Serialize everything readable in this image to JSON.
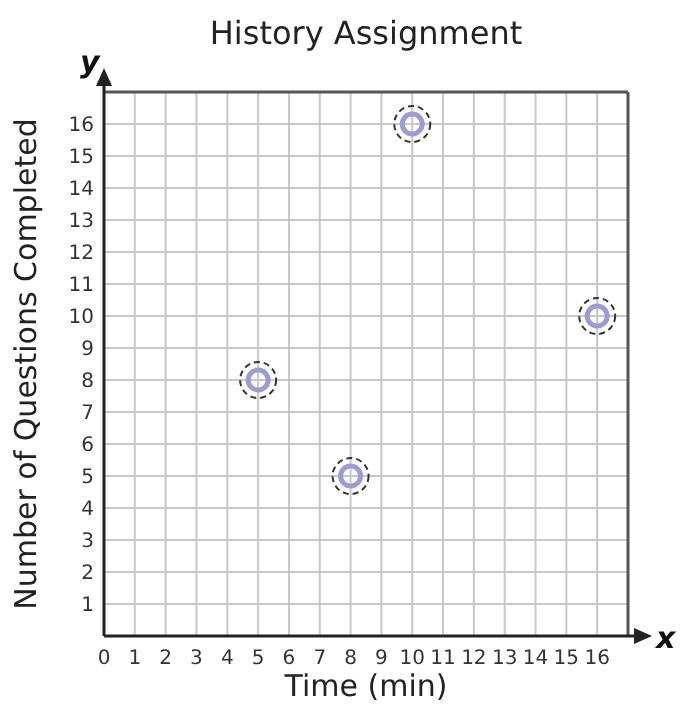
{
  "chart_data": {
    "type": "scatter",
    "title": "History Assignment",
    "xlabel": "Time (min)",
    "ylabel": "Number of Questions Completed",
    "x": [
      5,
      8,
      10,
      16
    ],
    "values": [
      8,
      5,
      16,
      10
    ],
    "color": "#9b9bd6",
    "marker": "circle",
    "xlim": [
      0,
      17
    ],
    "xticks": [
      0,
      1,
      2,
      3,
      4,
      5,
      6,
      7,
      8,
      9,
      10,
      11,
      12,
      13,
      14,
      15,
      16
    ],
    "ylim": [
      0,
      17
    ],
    "yticks": [
      1,
      2,
      3,
      4,
      5,
      6,
      7,
      8,
      9,
      10,
      11,
      12,
      13,
      14,
      15,
      16
    ],
    "grid": true,
    "annotations": [
      "x",
      "y"
    ]
  }
}
